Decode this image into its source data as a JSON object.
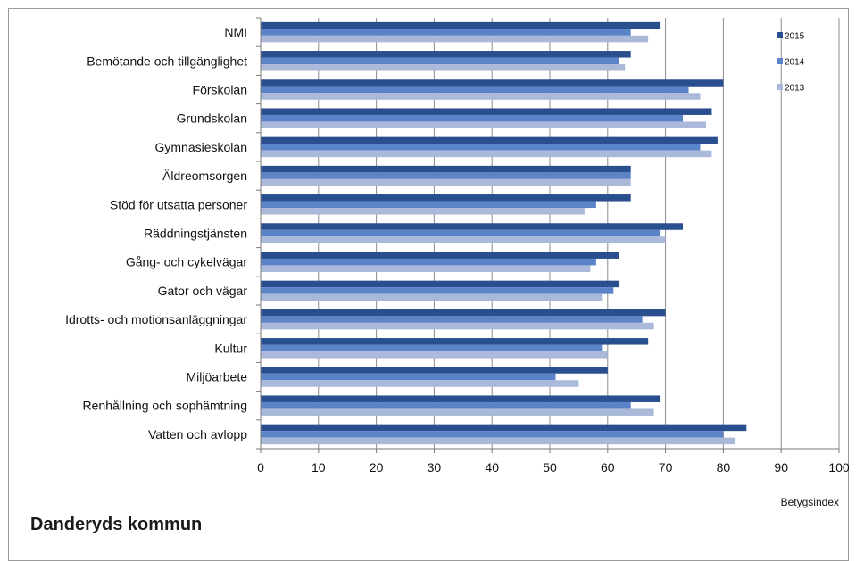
{
  "page": {
    "footer_title": "Danderyds kommun"
  },
  "chart_data": {
    "type": "bar",
    "orientation": "horizontal",
    "categories": [
      "NMI",
      "Bemötande och tillgänglighet",
      "Förskolan",
      "Grundskolan",
      "Gymnasieskolan",
      "Äldreomsorgen",
      "Stöd för utsatta personer",
      "Räddningstjänsten",
      "Gång- och cykelvägar",
      "Gator och vägar",
      "Idrotts- och motionsanläggningar",
      "Kultur",
      "Miljöarbete",
      "Renhållning och sophämtning",
      "Vatten och avlopp"
    ],
    "series": [
      {
        "name": "2015",
        "color": "#2a4f8f",
        "values": [
          69,
          64,
          80,
          78,
          79,
          64,
          64,
          73,
          62,
          62,
          70,
          67,
          60,
          69,
          84
        ]
      },
      {
        "name": "2014",
        "color": "#5b83c8",
        "values": [
          64,
          62,
          74,
          73,
          76,
          64,
          58,
          69,
          58,
          61,
          66,
          59,
          51,
          64,
          80
        ]
      },
      {
        "name": "2013",
        "color": "#aab9da",
        "values": [
          67,
          63,
          76,
          77,
          78,
          64,
          56,
          70,
          57,
          59,
          68,
          60,
          55,
          68,
          82
        ]
      }
    ],
    "xlim": [
      0,
      100
    ],
    "xticks": [
      "0",
      "10",
      "20",
      "30",
      "40",
      "50",
      "60",
      "70",
      "80",
      "90",
      "100"
    ],
    "xlabel": "Betygsindex",
    "grid": "vertical",
    "legend_position": "top-right"
  }
}
